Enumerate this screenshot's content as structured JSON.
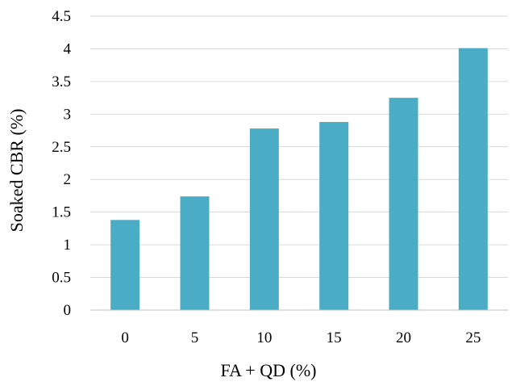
{
  "chart_data": {
    "type": "bar",
    "categories": [
      "0",
      "5",
      "10",
      "15",
      "20",
      "25"
    ],
    "values": [
      1.38,
      1.74,
      2.78,
      2.88,
      3.25,
      4.01
    ],
    "xlabel": "FA + QD (%)",
    "ylabel": "Soaked CBR (%)",
    "ylim": [
      0,
      4.5
    ],
    "yticks": [
      "0",
      "0.5",
      "1",
      "1.5",
      "2",
      "2.5",
      "3",
      "3.5",
      "4",
      "4.5"
    ],
    "grid": true,
    "legend": "none",
    "colors": {
      "bar": "#4BACC6",
      "grid": "#D9D9D9",
      "axis": "#BFBFBF"
    }
  }
}
